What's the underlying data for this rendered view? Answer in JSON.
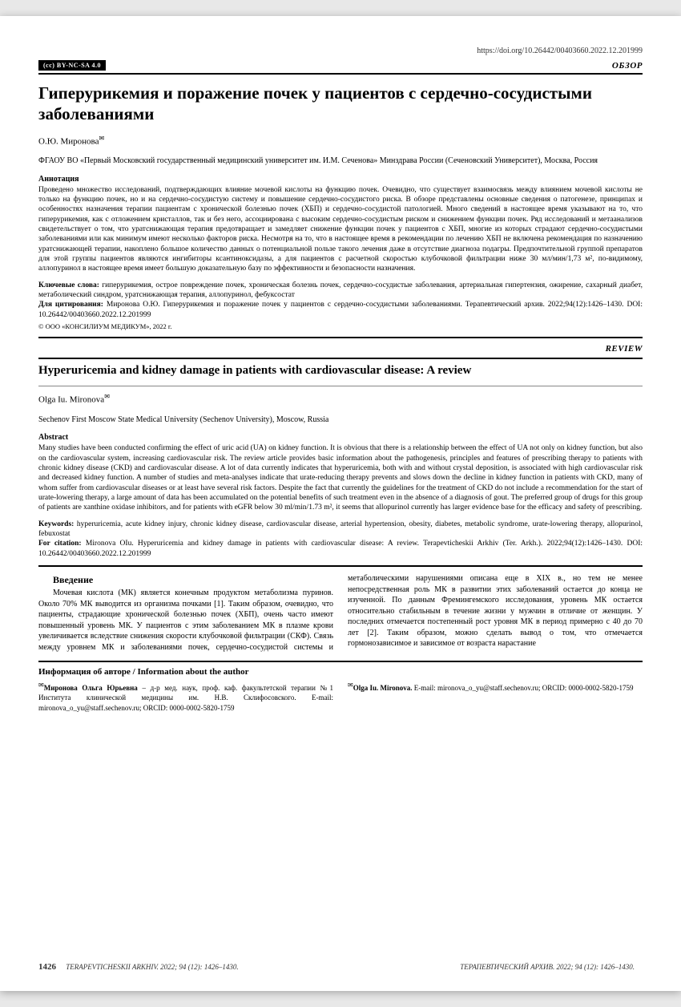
{
  "doi": "https://doi.org/10.26442/00403660.2022.12.201999",
  "license": "(cc) BY-NC-SA 4.0",
  "article_type_ru": "ОБЗОР",
  "article_type_en": "REVIEW",
  "title_ru": "Гиперурикемия и поражение почек у пациентов с сердечно-сосудистыми заболеваниями",
  "author_ru": "О.Ю. Миронова",
  "affiliation_ru": "ФГАОУ ВО «Первый Московский государственный медицинский университет им. И.М. Сеченова» Минздрава России (Сеченовский Университет), Москва, Россия",
  "abstract_label_ru": "Аннотация",
  "abstract_ru": "Проведено множество исследований, подтверждающих влияние мочевой кислоты на функцию почек. Очевидно, что существует взаимосвязь между влиянием мочевой кислоты не только на функцию почек, но и на сердечно-сосудистую систему и повышение сердечно-сосудистого риска. В обзоре представлены основные сведения о патогенезе, принципах и особенностях назначения терапии пациентам с хронической болезнью почек (ХБП) и сердечно-сосудистой патологией. Много сведений в настоящее время указывают на то, что гиперурикемия, как с отложением кристаллов, так и без него, ассоциирована с высоким сердечно-сосудистым риском и снижением функции почек. Ряд исследований и метаанализов свидетельствует о том, что уратснижающая терапия предотвращает и замедляет снижение функции почек у пациентов с ХБП, многие из которых страдают сердечно-сосудистыми заболеваниями или как минимум имеют несколько факторов риска. Несмотря на то, что в настоящее время в рекомендации по лечению ХБП не включена рекомендация по назначению уратснижающей терапии, накоплено большое количество данных о потенциальной пользе такого лечения даже в отсутствие диагноза подагры. Предпочтительной группой препаратов для этой группы пациентов являются ингибиторы ксантиноксидазы, а для пациентов с расчетной скоростью клубочковой фильтрации ниже 30 мл/мин/1,73 м², по-видимому, аллопуринол в настоящее время имеет большую доказательную базу по эффективности и безопасности назначения.",
  "keywords_label_ru": "Ключевые слова:",
  "keywords_ru": " гиперурикемия, острое повреждение почек, хроническая болезнь почек, сердечно-сосудистые заболевания, артериальная гипертензия, ожирение, сахарный диабет, метаболический синдром, уратснижающая терапия, аллопуринол, фебуксостат",
  "citation_label_ru": "Для цитирования:",
  "citation_ru": " Миронова О.Ю. Гиперурикемия и поражение почек у пациентов с сердечно-сосудистыми заболеваниями. Терапевтический архив. 2022;94(12):1426–1430. DOI: 10.26442/00403660.2022.12.201999",
  "copyright": "© ООО «КОНСИЛИУМ МЕДИКУМ», 2022 г.",
  "title_en": "Hyperuricemia and kidney damage in patients with cardiovascular disease: A review",
  "author_en": "Olga Iu. Mironova",
  "affiliation_en": "Sechenov First Moscow State Medical University (Sechenov University), Moscow, Russia",
  "abstract_label_en": "Abstract",
  "abstract_en": "Many studies have been conducted confirming the effect of uric acid (UA) on kidney function. It is obvious that there is a relationship between the effect of UA not only on kidney function, but also on the cardiovascular system, increasing cardiovascular risk. The review article provides basic information about the pathogenesis, principles and features of prescribing therapy to patients with chronic kidney disease (CKD) and cardiovascular disease. A lot of data currently indicates that hyperuricemia, both with and without crystal deposition, is associated with high cardiovascular risk and decreased kidney function. A number of studies and meta-analyses indicate that urate-reducing therapy prevents and slows down the decline in kidney function in patients with CKD, many of whom suffer from cardiovascular diseases or at least have several risk factors. Despite the fact that currently the guidelines for the treatment of CKD do not include a recommendation for the start of urate-lowering therapy, a large amount of data has been accumulated on the potential benefits of such treatment even in the absence of a diagnosis of gout. The preferred group of drugs for this group of patients are xanthine oxidase inhibitors, and for patients with eGFR below 30 ml/min/1.73 m², it seems that allopurinol currently has larger evidence base for the efficacy and safety of prescribing.",
  "keywords_label_en": "Keywords:",
  "keywords_en": " hyperuricemia, acute kidney injury, chronic kidney disease, cardiovascular disease, arterial hypertension, obesity, diabetes, metabolic syndrome, urate-lowering therapy, allopurinol, febuxostat",
  "citation_label_en": "For citation:",
  "citation_en": " Mironova OIu. Hyperuricemia and kidney damage in patients with cardiovascular disease: A review. Terapevticheskii Arkhiv (Ter. Arkh.). 2022;94(12):1426–1430. DOI: 10.26442/00403660.2022.12.201999",
  "intro_heading": "Введение",
  "intro_text": "Мочевая кислота (МК) является конечным продуктом метаболизма пуринов. Около 70% МК выводится из организма почками [1]. Таким образом, очевидно, что пациенты, страдающие хронической болезнью почек (ХБП), очень часто имеют повышенный уровень МК. У пациентов с этим заболеванием МК в плазме крови увеличивается вследствие снижения скорости клубочковой фильтрации (СКФ). Связь между уровнем МК и заболеваниями почек, сердечно-сосудистой системы и метаболическими нарушениями описана еще в XIX в., но тем не менее непосредственная роль МК в развитии этих заболеваний остается до конца не изученной. По данным Фремингемского исследования, уровень МК остается относительно стабильным в течение жизни у мужчин в отличие от женщин. У последних отмечается постепенный рост уровня МК в период примерно с 40 до 70 лет [2]. Таким образом, можно сделать вывод о том, что отмечается гормонозависимое и зависимое от возраста нарастание",
  "author_info_heading": "Информация об авторе / Information about the author",
  "author_info_ru": "Миронова Ольга Юрьевна – д-р мед. наук, проф. каф. факультетской терапии №1 Института клинической медицины им. Н.В. Склифосовского. E-mail: mironova_o_yu@staff.sechenov.ru; ORCID: 0000-0002-5820-1759",
  "author_info_en": "Olga Iu. Mironova. E-mail: mironova_o_yu@staff.sechenov.ru; ORCID: 0000-0002-5820-1759",
  "footer_left_page": "1426",
  "footer_left_text": "TERAPEVTICHESKII ARKHIV. 2022; 94 (12): 1426–1430.",
  "footer_right_text": "ТЕРАПЕВТИЧЕСКИЙ АРХИВ. 2022; 94 (12): 1426–1430.",
  "footer_right_page": "",
  "colors": {
    "background": "#ffffff",
    "text": "#000000",
    "rule": "#000000",
    "badge_bg": "#000000",
    "badge_fg": "#ffffff"
  }
}
